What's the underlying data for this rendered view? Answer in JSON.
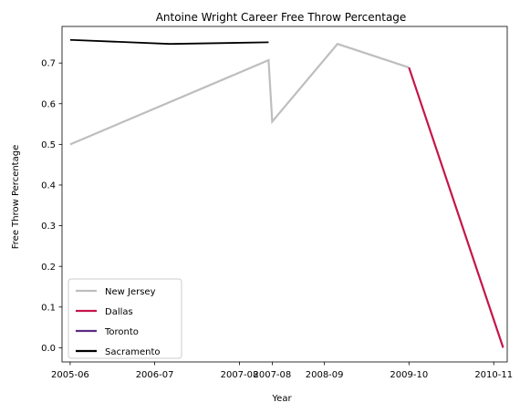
{
  "chart_data": {
    "type": "line",
    "title": "Antoine Wright  Career Free Throw Percentage",
    "xlabel": "Year",
    "ylabel": "Free Throw Percentage",
    "ylim": [
      -0.035,
      0.79
    ],
    "xlim": [
      "2005-04-24",
      "2011-01-03"
    ],
    "x_ticks": [
      "2005-06",
      "2006-07",
      "2007-08",
      "2007-08",
      "2008-09",
      "2009-10",
      "2010-11"
    ],
    "x_tick_dates": [
      "2005-06-01",
      "2006-07-01",
      "2007-08-01",
      "2008-01-01",
      "2008-09-01",
      "2009-10-01",
      "2010-11-01"
    ],
    "y_ticks": [
      "0.0",
      "0.1",
      "0.2",
      "0.3",
      "0.4",
      "0.5",
      "0.6",
      "0.7"
    ],
    "grid": false,
    "legend_position": "lower-left",
    "series": [
      {
        "name": "New Jersey",
        "color": "#bebebe",
        "points": [
          {
            "x": "2005-06-01",
            "y": 0.5
          },
          {
            "x": "2007-12-15",
            "y": 0.707
          },
          {
            "x": "2008-01-01",
            "y": 0.556
          },
          {
            "x": "2008-11-01",
            "y": 0.747
          },
          {
            "x": "2009-10-01",
            "y": 0.689
          }
        ]
      },
      {
        "name": "Dallas",
        "color": "#c4164a",
        "points": [
          {
            "x": "2009-10-01",
            "y": 0.689
          },
          {
            "x": "2010-12-15",
            "y": 0.0
          }
        ]
      },
      {
        "name": "Toronto",
        "color": "#5b2c83",
        "points": []
      },
      {
        "name": "Sacramento",
        "color": "#000000",
        "points": [
          {
            "x": "2005-06-01",
            "y": 0.757
          },
          {
            "x": "2006-09-10",
            "y": 0.747
          },
          {
            "x": "2007-12-15",
            "y": 0.751
          }
        ]
      }
    ]
  }
}
